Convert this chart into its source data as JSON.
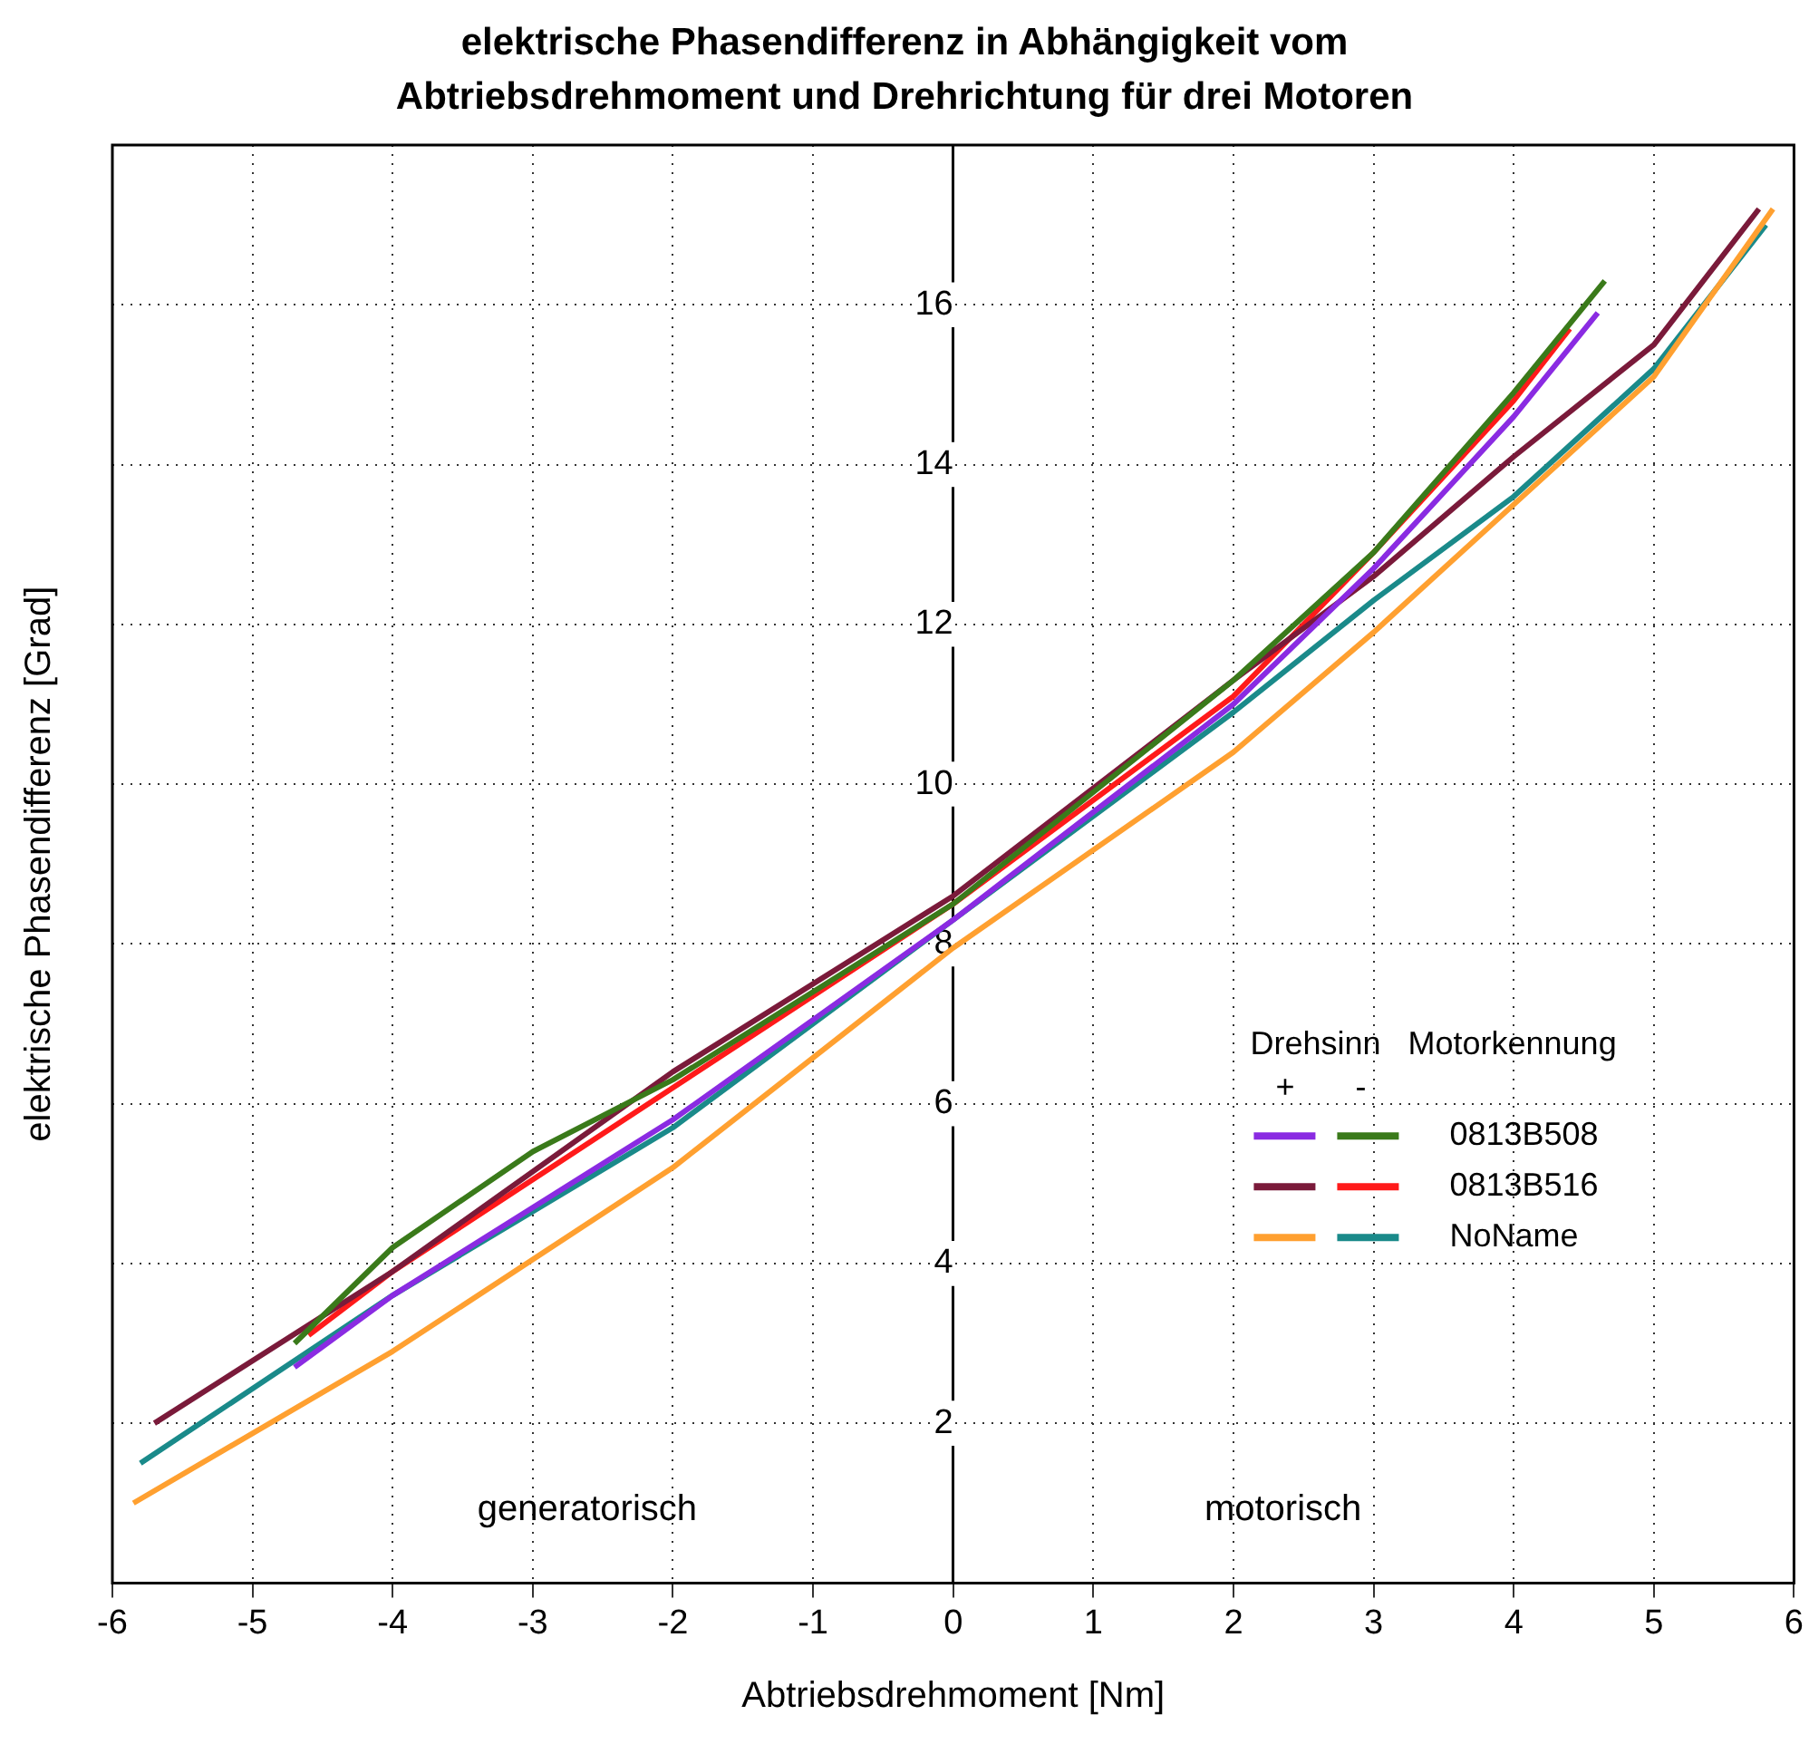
{
  "chart_data": {
    "type": "line",
    "title": "elektrische Phasendifferenz in Abhängigkeit vom\nAbtriebsdrehmoment und Drehrichtung für drei Motoren",
    "xlabel": "Abtriebsdrehmoment [Nm]",
    "ylabel": "elektrische Phasendifferenz [Grad]",
    "legend_title": "Drehsinn   Motorkennung",
    "annotations": [
      "generatorisch",
      "motorisch",
      "+",
      "-"
    ],
    "xlim": [
      -6,
      6
    ],
    "ylim": [
      0,
      18
    ],
    "xticks": [
      -6,
      -5,
      -4,
      -3,
      -2,
      -1,
      0,
      1,
      2,
      3,
      4,
      5,
      6
    ],
    "yticks": [
      2,
      4,
      6,
      8,
      10,
      12,
      14,
      16
    ],
    "grid": true,
    "legend": "right",
    "marker": "none",
    "line_style": "solid",
    "series": [
      {
        "color": "#8a2be2",
        "x": [
          -4.7,
          -4,
          -2,
          0,
          2,
          3,
          4,
          4.6
        ],
        "values": [
          2.7,
          3.6,
          5.8,
          8.3,
          11.0,
          12.7,
          14.6,
          15.9
        ]
      },
      {
        "name": "0813B508",
        "color": "#3a7a1a",
        "x": [
          -4.7,
          -4,
          -3,
          -2,
          0,
          2,
          3,
          4,
          4.65
        ],
        "values": [
          3.0,
          4.2,
          5.4,
          6.3,
          8.5,
          11.3,
          12.9,
          14.9,
          16.3
        ]
      },
      {
        "color": "#7a1a3a",
        "x": [
          -5.7,
          -4,
          -2,
          0,
          2,
          3,
          4,
          5,
          5.75
        ],
        "values": [
          2.0,
          3.9,
          6.4,
          8.6,
          11.3,
          12.6,
          14.1,
          15.5,
          17.2
        ]
      },
      {
        "name": "0813B516",
        "color": "#ff1a1a",
        "x": [
          -4.6,
          -4,
          -2,
          0,
          2,
          3,
          4,
          4.4
        ],
        "values": [
          3.1,
          3.9,
          6.2,
          8.5,
          11.1,
          12.9,
          14.8,
          15.7
        ]
      },
      {
        "color": "#ffa030",
        "x": [
          -5.85,
          -4,
          -2,
          0,
          2,
          3,
          4,
          5,
          5.85
        ],
        "values": [
          1.0,
          2.9,
          5.2,
          7.95,
          10.4,
          11.9,
          13.5,
          15.1,
          17.2
        ]
      },
      {
        "name": "NoName",
        "color": "#1a8a8a",
        "x": [
          -5.8,
          -4,
          -2,
          0,
          2,
          3,
          4,
          5,
          5.8
        ],
        "values": [
          1.5,
          3.6,
          5.7,
          8.3,
          10.9,
          12.3,
          13.6,
          15.2,
          17.0
        ]
      }
    ]
  }
}
